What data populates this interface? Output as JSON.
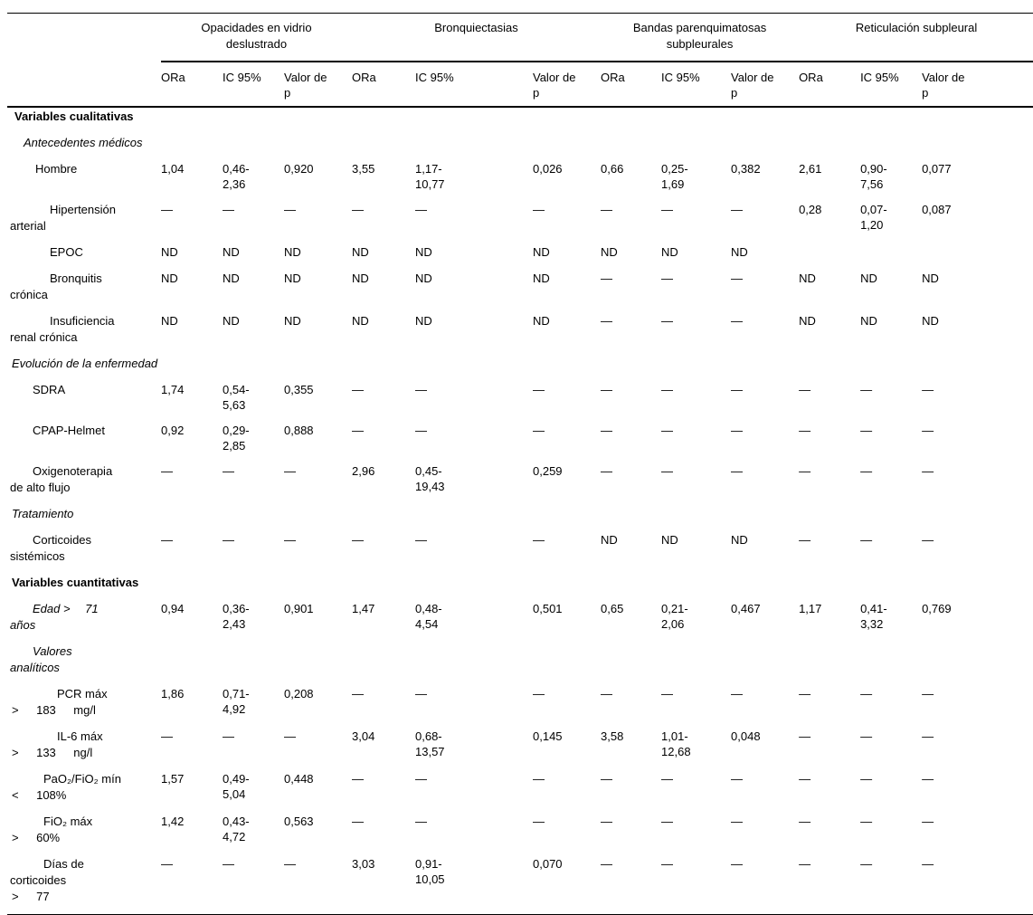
{
  "table": {
    "groups": [
      {
        "label": "Opacidades en vidrio\ndeslustrado"
      },
      {
        "label": "Bronquiectasias"
      },
      {
        "label": "Bandas parenquimatosas\nsubpleurales"
      },
      {
        "label": "Reticulación subpleural"
      }
    ],
    "subheaders": [
      "ORa",
      "IC 95%",
      "Valor de\np",
      "ORa",
      "IC 95%",
      "Valor de\np",
      "ORa",
      "IC 95%",
      "Valor de\np",
      "ORa",
      "IC 95%",
      "Valor de\np"
    ],
    "rows": [
      {
        "lines": [
          {
            "text": "Variables cualitativas",
            "indent": 8,
            "style": "b"
          }
        ],
        "cells": [
          "",
          "",
          "",
          "",
          "",
          "",
          "",
          "",
          "",
          "",
          "",
          ""
        ]
      },
      {
        "lines": [
          {
            "text": "Antecedentes médicos",
            "indent": 18,
            "style": "i"
          }
        ],
        "cells": [
          "",
          "",
          "",
          "",
          "",
          "",
          "",
          "",
          "",
          "",
          "",
          ""
        ]
      },
      {
        "lines": [
          {
            "text": "Hombre",
            "indent": 31
          }
        ],
        "cells": [
          "1,04",
          "0,46-\n2,36",
          "0,920",
          "3,55",
          "1,17-\n10,77",
          "0,026",
          "0,66",
          "0,25-\n1,69",
          "0,382",
          "2,61",
          "0,90-\n7,56",
          "0,077"
        ]
      },
      {
        "lines": [
          {
            "text": "Hipertensión",
            "indent": 47
          },
          {
            "text": "arterial",
            "indent": 3
          }
        ],
        "cells": [
          "—",
          "—",
          "—",
          "—",
          "—",
          "—",
          "—",
          "—",
          "—",
          "0,28",
          "0,07-\n1,20",
          "0,087"
        ]
      },
      {
        "lines": [
          {
            "text": "EPOC",
            "indent": 47
          }
        ],
        "cells": [
          "ND",
          "ND",
          "ND",
          "ND",
          "ND",
          "ND",
          "ND",
          "ND",
          "ND",
          "",
          "",
          ""
        ]
      },
      {
        "lines": [
          {
            "text": "Bronquitis",
            "indent": 47
          },
          {
            "text": "crónica",
            "indent": 3
          }
        ],
        "cells": [
          "ND",
          "ND",
          "ND",
          "ND",
          "ND",
          "ND",
          "—",
          "—",
          "—",
          "ND",
          "ND",
          "ND"
        ]
      },
      {
        "lines": [
          {
            "text": "Insuficiencia",
            "indent": 47
          },
          {
            "text": "renal crónica",
            "indent": 3
          }
        ],
        "cells": [
          "ND",
          "ND",
          "ND",
          "ND",
          "ND",
          "ND",
          "—",
          "—",
          "—",
          "ND",
          "ND",
          "ND"
        ]
      },
      {
        "lines": [
          {
            "text": "Evolución de la enfermedad",
            "indent": 5,
            "style": "i"
          }
        ],
        "cells": [
          "",
          "",
          "",
          "",
          "",
          "",
          "",
          "",
          "",
          "",
          "",
          ""
        ]
      },
      {
        "lines": [
          {
            "text": "SDRA",
            "indent": 28
          }
        ],
        "cells": [
          "1,74",
          "0,54-\n5,63",
          "0,355",
          "—",
          "—",
          "—",
          "—",
          "—",
          "—",
          "—",
          "—",
          "—"
        ]
      },
      {
        "lines": [
          {
            "text": "CPAP-Helmet",
            "indent": 28
          }
        ],
        "cells": [
          "0,92",
          "0,29-\n2,85",
          "0,888",
          "—",
          "—",
          "—",
          "—",
          "—",
          "—",
          "—",
          "—",
          "—"
        ]
      },
      {
        "lines": [
          {
            "text": "Oxigenoterapia",
            "indent": 28
          },
          {
            "text": "de alto flujo",
            "indent": 3
          }
        ],
        "cells": [
          "—",
          "—",
          "—",
          "2,96",
          "0,45-\n19,43",
          "0,259",
          "—",
          "—",
          "—",
          "—",
          "—",
          "—"
        ]
      },
      {
        "lines": [
          {
            "text": "Tratamiento",
            "indent": 5,
            "style": "i"
          }
        ],
        "cells": [
          "",
          "",
          "",
          "",
          "",
          "",
          "",
          "",
          "",
          "",
          "",
          ""
        ]
      },
      {
        "lines": [
          {
            "text": "Corticoides",
            "indent": 28
          },
          {
            "text": "sistémicos",
            "indent": 3
          }
        ],
        "cells": [
          "—",
          "—",
          "—",
          "—",
          "—",
          "—",
          "ND",
          "ND",
          "ND",
          "—",
          "—",
          "—"
        ]
      },
      {
        "lines": [
          {
            "text": "Variables cuantitativas",
            "indent": 5,
            "style": "b"
          }
        ],
        "cells": [
          "",
          "",
          "",
          "",
          "",
          "",
          "",
          "",
          "",
          "",
          "",
          ""
        ]
      },
      {
        "lines": [
          {
            "text": "Edad >  71",
            "indent": 28,
            "style": "i"
          },
          {
            "text": "años",
            "indent": 3,
            "style": "i"
          }
        ],
        "cells": [
          "0,94",
          "0,36-\n2,43",
          "0,901",
          "1,47",
          "0,48-\n4,54",
          "0,501",
          "0,65",
          "0,21-\n2,06",
          "0,467",
          "1,17",
          "0,41-\n3,32",
          "0,769"
        ]
      },
      {
        "lines": [
          {
            "text": "Valores",
            "indent": 28,
            "style": "i"
          },
          {
            "text": "analíticos",
            "indent": 3,
            "style": "i"
          }
        ],
        "cells": [
          "",
          "",
          "",
          "",
          "",
          "",
          "",
          "",
          "",
          "",
          "",
          ""
        ]
      },
      {
        "lines": [
          {
            "text": "PCR máx",
            "indent": 55
          },
          {
            "text": ">  183  mg/l",
            "indent": 5
          }
        ],
        "cells": [
          "1,86",
          "0,71-\n4,92",
          "0,208",
          "—",
          "—",
          "—",
          "—",
          "—",
          "—",
          "—",
          "—",
          "—"
        ]
      },
      {
        "lines": [
          {
            "text": "IL-6 máx",
            "indent": 55
          },
          {
            "text": ">  133  ng/l",
            "indent": 5
          }
        ],
        "cells": [
          "—",
          "—",
          "—",
          "3,04",
          "0,68-\n13,57",
          "0,145",
          "3,58",
          "1,01-\n12,68",
          "0,048",
          "—",
          "—",
          "—"
        ]
      },
      {
        "lines": [
          {
            "text": "PaO₂/FiO₂ mín",
            "indent": 40
          },
          {
            "text": "<  108%",
            "indent": 5
          }
        ],
        "cells": [
          "1,57",
          "0,49-\n5,04",
          "0,448",
          "—",
          "—",
          "—",
          "—",
          "—",
          "—",
          "—",
          "—",
          "—"
        ]
      },
      {
        "lines": [
          {
            "text": "FiO₂ máx",
            "indent": 40
          },
          {
            "text": ">  60%",
            "indent": 5
          }
        ],
        "cells": [
          "1,42",
          "0,43-\n4,72",
          "0,563",
          "—",
          "—",
          "—",
          "—",
          "—",
          "—",
          "—",
          "—",
          "—"
        ]
      },
      {
        "lines": [
          {
            "text": "Días de",
            "indent": 40
          },
          {
            "text": "corticoides",
            "indent": 3
          },
          {
            "text": ">  77",
            "indent": 5
          }
        ],
        "cells": [
          "—",
          "—",
          "—",
          "3,03",
          "0,91-\n10,05",
          "0,070",
          "—",
          "—",
          "—",
          "—",
          "—",
          "—"
        ]
      }
    ]
  }
}
